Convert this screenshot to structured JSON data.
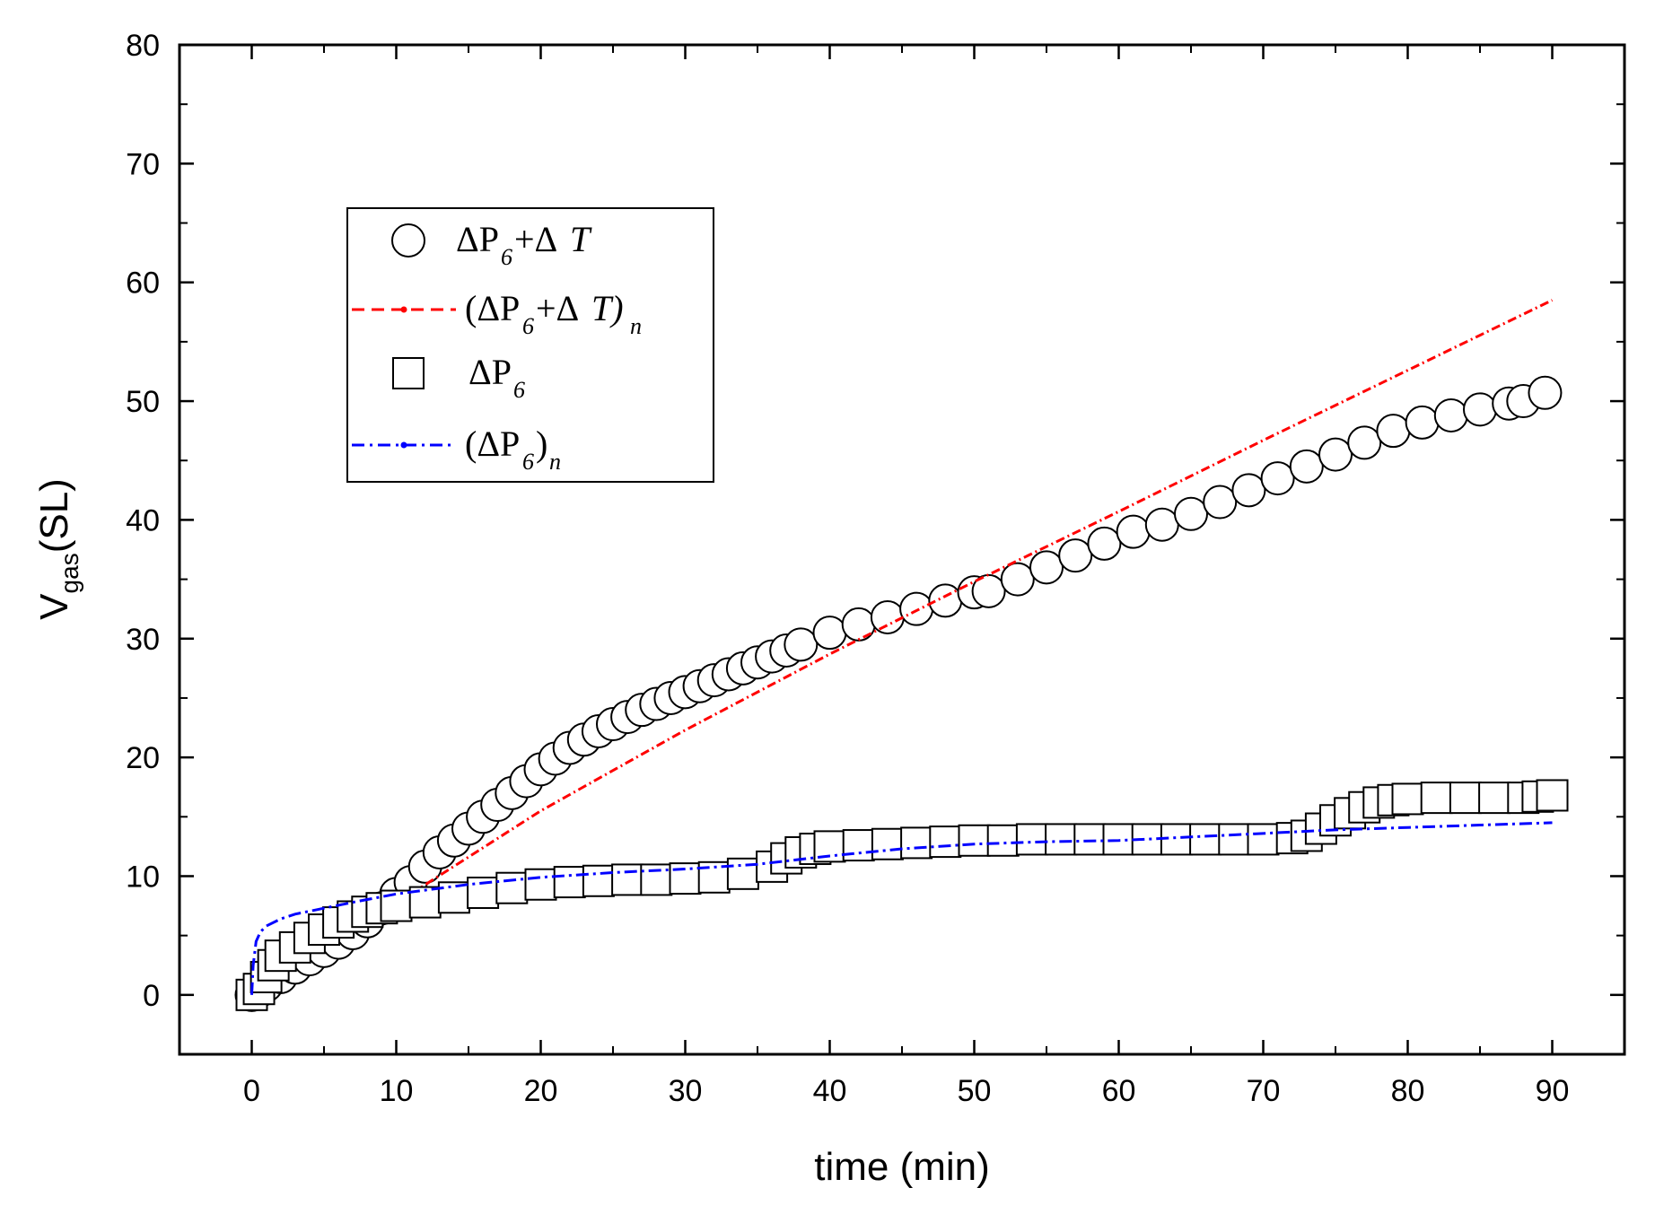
{
  "chart_data": {
    "type": "scatter",
    "title": "",
    "xlabel": "time (min)",
    "ylabel": {
      "base": "V",
      "sub": "gas",
      "rest": "(SL)"
    },
    "xlim": [
      -5,
      95
    ],
    "ylim": [
      -5,
      80
    ],
    "xticks": [
      0,
      10,
      20,
      30,
      40,
      50,
      60,
      70,
      80,
      90
    ],
    "yticks": [
      0,
      10,
      20,
      30,
      40,
      50,
      60,
      70,
      80
    ],
    "xtick_labels": [
      "0",
      "10",
      "20",
      "30",
      "40",
      "50",
      "60",
      "70",
      "80",
      "90"
    ],
    "ytick_labels": [
      "0",
      "10",
      "20",
      "30",
      "40",
      "50",
      "60",
      "70",
      "80"
    ],
    "legend_position": "upper-left",
    "series": [
      {
        "name": "ΔP6+ΔT",
        "kind": "markers",
        "marker": "circle",
        "color": "#000000",
        "x": [
          0,
          0.5,
          1,
          2,
          3,
          4,
          5,
          6,
          7,
          8,
          9,
          10,
          11,
          12,
          13,
          14,
          15,
          16,
          17,
          18,
          19,
          20,
          21,
          22,
          23,
          24,
          25,
          26,
          27,
          28,
          29,
          30,
          31,
          32,
          33,
          34,
          35,
          36,
          37,
          38,
          40,
          42,
          44,
          46,
          48,
          50,
          51,
          53,
          55,
          57,
          59,
          61,
          63,
          65,
          67,
          69,
          71,
          73,
          75,
          77,
          79,
          81,
          83,
          85,
          87,
          88,
          89.5
        ],
        "y": [
          0,
          0.3,
          0.8,
          1.5,
          2.3,
          3,
          3.7,
          4.4,
          5.2,
          6.2,
          7.3,
          8.5,
          9.5,
          10.8,
          12,
          13,
          14,
          15,
          16,
          17,
          18,
          19,
          19.9,
          20.8,
          21.5,
          22.2,
          22.8,
          23.4,
          24,
          24.5,
          25,
          25.5,
          26,
          26.5,
          27,
          27.5,
          28,
          28.5,
          29,
          29.5,
          30.5,
          31.2,
          31.8,
          32.5,
          33.2,
          33.9,
          34,
          35,
          36,
          37,
          38,
          39,
          39.6,
          40.5,
          41.5,
          42.5,
          43.5,
          44.5,
          45.5,
          46.5,
          47.5,
          48.2,
          48.8,
          49.3,
          49.8,
          50,
          50.7
        ]
      },
      {
        "name": "(ΔP6+ΔT)n",
        "kind": "line",
        "style": "dashed",
        "color": "#ff0000",
        "x": [
          11,
          20,
          30,
          40,
          50,
          60,
          70,
          80,
          90
        ],
        "y": [
          8.5,
          15.5,
          22.3,
          28.7,
          34.8,
          40.7,
          46.7,
          52.6,
          58.5
        ]
      },
      {
        "name": "ΔP6",
        "kind": "markers",
        "marker": "square",
        "color": "#000000",
        "x": [
          0,
          0.5,
          1,
          1.5,
          2,
          3,
          4,
          5,
          6,
          7,
          8,
          9,
          10,
          12,
          14,
          16,
          18,
          20,
          22,
          24,
          26,
          28,
          30,
          32,
          34,
          36,
          37,
          38,
          39,
          40,
          42,
          44,
          46,
          48,
          50,
          52,
          54,
          56,
          58,
          60,
          62,
          64,
          66,
          68,
          70,
          72,
          73,
          74,
          75,
          76,
          77,
          78,
          79,
          80,
          82,
          84,
          86,
          88,
          89,
          90
        ],
        "y": [
          0,
          0.5,
          1.5,
          2.5,
          3.3,
          4,
          4.8,
          5.5,
          6.1,
          6.6,
          7,
          7.3,
          7.5,
          7.8,
          8.2,
          8.6,
          9,
          9.3,
          9.5,
          9.6,
          9.7,
          9.7,
          9.8,
          9.9,
          10.2,
          10.8,
          11.5,
          12,
          12.3,
          12.5,
          12.6,
          12.7,
          12.8,
          12.9,
          13,
          13,
          13.1,
          13.1,
          13.1,
          13.1,
          13.1,
          13.1,
          13.1,
          13.1,
          13.1,
          13.2,
          13.4,
          14,
          14.7,
          15.3,
          15.8,
          16.2,
          16.4,
          16.5,
          16.6,
          16.6,
          16.6,
          16.6,
          16.7,
          16.8
        ]
      },
      {
        "name": "(ΔP6)n",
        "kind": "line",
        "style": "dashdot",
        "color": "#0000ff",
        "x": [
          0,
          0.1,
          0.3,
          0.6,
          1,
          2,
          3,
          5,
          7,
          10,
          15,
          20,
          25,
          30,
          35,
          40,
          45,
          50,
          55,
          60,
          65,
          70,
          75,
          80,
          85,
          90
        ],
        "y": [
          0,
          2.5,
          4.5,
          5.3,
          5.8,
          6.4,
          6.8,
          7.3,
          7.8,
          8.5,
          9.3,
          9.9,
          10.3,
          10.6,
          11,
          11.7,
          12.3,
          12.7,
          12.9,
          13,
          13.3,
          13.6,
          13.9,
          14.1,
          14.3,
          14.5
        ]
      }
    ],
    "legend": [
      {
        "symbol": "circle",
        "color": "#000000",
        "label": "ΔP6+ΔT"
      },
      {
        "symbol": "dashed",
        "color": "#ff0000",
        "label": "(ΔP6+ΔT)n"
      },
      {
        "symbol": "square",
        "color": "#000000",
        "label": "ΔP6"
      },
      {
        "symbol": "dashdot",
        "color": "#0000ff",
        "label": "(ΔP6)n"
      }
    ]
  }
}
